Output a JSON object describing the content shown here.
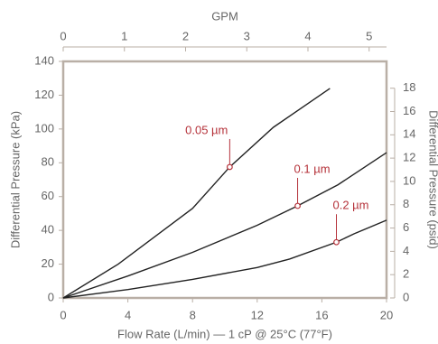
{
  "chart_data": {
    "type": "line",
    "x_label": "Flow Rate (L/min) — 1 cP @ 25°C (77°F)",
    "y_label": "Differential Pressure (kPa)",
    "x2_label": "GPM",
    "y2_label": "Differential Pressure (psid)",
    "xlim": [
      0,
      20
    ],
    "xticks": [
      0,
      4,
      8,
      12,
      16,
      20
    ],
    "ylim": [
      0,
      140
    ],
    "yticks": [
      0,
      20,
      40,
      60,
      80,
      100,
      120,
      140
    ],
    "x2lim": [
      0,
      5.284
    ],
    "x2ticks": [
      0,
      1,
      2,
      3,
      4,
      5
    ],
    "y2lim": [
      0,
      20.3
    ],
    "y2ticks": [
      0,
      2,
      4,
      6,
      8,
      10,
      12,
      14,
      16,
      18
    ],
    "line_color": "#222222",
    "marker_color": "#b5323a",
    "axis_color": "#b9afa6",
    "series": [
      {
        "name": "0.05 µm",
        "x": [
          0,
          3.4,
          8,
          10.3,
          13,
          16.5
        ],
        "values": [
          0,
          20,
          53,
          77.5,
          101,
          124
        ],
        "marker": {
          "x": 10.3,
          "y": 77.5
        }
      },
      {
        "name": "0.1 µm",
        "x": [
          0,
          4,
          8,
          12,
          14.5,
          17,
          20
        ],
        "values": [
          0,
          13,
          27,
          43,
          54.5,
          67,
          86
        ],
        "marker": {
          "x": 14.5,
          "y": 54.5
        }
      },
      {
        "name": "0.2 µm",
        "x": [
          0,
          4,
          8,
          12,
          14,
          16.9,
          18,
          20
        ],
        "values": [
          0,
          5,
          11,
          18,
          23,
          33,
          38,
          46
        ],
        "marker": {
          "x": 16.9,
          "y": 33
        }
      }
    ]
  }
}
